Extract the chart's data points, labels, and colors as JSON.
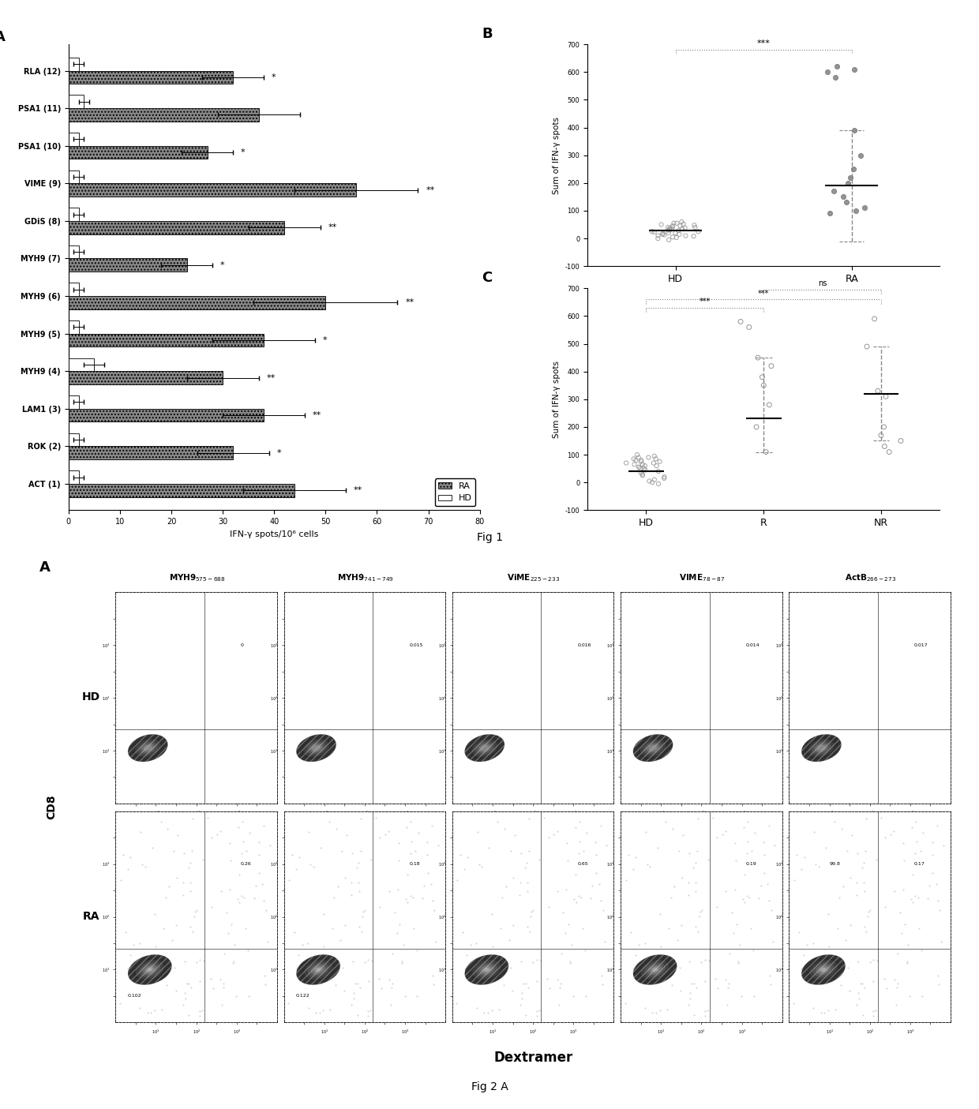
{
  "panel_A": {
    "labels": [
      "RLA (12)",
      "PSA1 (11)",
      "PSA1 (10)",
      "VIME (9)",
      "GDiS (8)",
      "MYH9 (7)",
      "MYH9 (6)",
      "MYH9 (5)",
      "MYH9 (4)",
      "LAM1 (3)",
      "ROK (2)",
      "ACT (1)"
    ],
    "RA_values": [
      32,
      37,
      27,
      56,
      42,
      23,
      50,
      38,
      30,
      38,
      32,
      44
    ],
    "HD_values": [
      2,
      3,
      2,
      2,
      2,
      2,
      2,
      2,
      5,
      2,
      2,
      2
    ],
    "RA_errors": [
      6,
      8,
      5,
      12,
      7,
      5,
      14,
      10,
      7,
      8,
      7,
      10
    ],
    "HD_errors": [
      1,
      1,
      1,
      1,
      1,
      1,
      1,
      1,
      2,
      1,
      1,
      1
    ],
    "significance": [
      "*",
      "",
      "*",
      "**",
      "**",
      "*",
      "**",
      "*",
      "**",
      "**",
      "*",
      "**"
    ],
    "xlim": [
      0,
      80
    ],
    "xticks": [
      0,
      10,
      20,
      30,
      40,
      50,
      60,
      70,
      80
    ],
    "xlabel": "IFN-γ spots/10⁶ cells",
    "title": "A",
    "ra_color": "#555555",
    "hd_color": "#ffffff"
  },
  "panel_B": {
    "title": "B",
    "HD_points": [
      60,
      55,
      52,
      48,
      45,
      42,
      40,
      38,
      37,
      35,
      33,
      30,
      28,
      25,
      23,
      20,
      18,
      15,
      13,
      10,
      8,
      5,
      3,
      0,
      -5,
      55,
      50,
      45,
      40,
      35,
      30,
      25,
      20,
      15,
      10
    ],
    "RA_points": [
      620,
      610,
      600,
      580,
      390,
      300,
      250,
      220,
      200,
      170,
      150,
      130,
      110,
      100,
      90
    ],
    "HD_mean": 30,
    "RA_mean": 190,
    "RA_sd_upper": 390,
    "RA_sd_lower": -10,
    "ylim": [
      -100,
      700
    ],
    "yticks": [
      -100,
      0,
      100,
      200,
      300,
      400,
      500,
      600,
      700
    ],
    "ylabel": "Sum of IFN-γ spots",
    "groups": [
      "HD",
      "RA"
    ],
    "significance": "***"
  },
  "panel_C": {
    "title": "C",
    "HD_points": [
      100,
      95,
      90,
      85,
      80,
      75,
      70,
      65,
      60,
      55,
      50,
      45,
      40,
      35,
      30,
      25,
      20,
      15,
      10,
      5,
      0,
      -5,
      90,
      85,
      80,
      75,
      70,
      65,
      60,
      55,
      50
    ],
    "R_points": [
      580,
      560,
      450,
      420,
      380,
      350,
      280,
      200,
      110
    ],
    "NR_points": [
      590,
      490,
      330,
      310,
      200,
      170,
      150,
      130,
      110
    ],
    "HD_mean": 40,
    "R_mean": 230,
    "R_sd_upper": 450,
    "R_sd_lower": 110,
    "NR_mean": 320,
    "NR_sd_upper": 490,
    "NR_sd_lower": 150,
    "ylim": [
      -100,
      700
    ],
    "yticks": [
      -100,
      0,
      100,
      200,
      300,
      400,
      500,
      600,
      700
    ],
    "ylabel": "Sum of IFN-γ spots",
    "groups": [
      "HD",
      "R",
      "NR"
    ],
    "sig_HD_R": "***",
    "sig_HD_NR": "***",
    "sig_R_NR": "ns"
  },
  "panel_Fig2A": {
    "col_labels": [
      "MYH9$_{575-688}$",
      "MYH9$_{741-749}$",
      "ViME$_{225-233}$",
      "VIME$_{78-87}$",
      "ActB$_{266-273}$"
    ],
    "row_labels": [
      "HD",
      "RA"
    ],
    "hd_pct_upper": [
      "0",
      "0.015",
      "0.016",
      "0.014",
      "0.017"
    ],
    "ra_pct_upper": [
      "0.26",
      "0.18",
      "0.65",
      "0.19",
      "0.17"
    ],
    "ra_pct_lower_left": [
      "0.102",
      "0.122",
      "",
      "",
      ""
    ],
    "ra_pct_extra": [
      "",
      "",
      "",
      "",
      "99.8"
    ]
  },
  "fig1_label": "Fig 1",
  "fig2a_label": "Fig 2 A",
  "bg_color": "#ffffff"
}
